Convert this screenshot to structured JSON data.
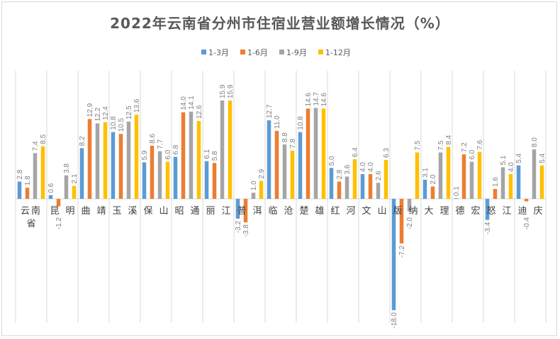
{
  "chart_data": {
    "type": "bar",
    "title": "2022年云南省分州市住宿业营业额增长情况（%）",
    "xlabel": "",
    "ylabel": "",
    "ylim": [
      -18,
      16
    ],
    "grid": "vertical category separators",
    "legend_position": "top",
    "categories": [
      "云南省",
      "昆明",
      "曲靖",
      "玉溪",
      "保山",
      "昭通",
      "丽江",
      "普洱",
      "临沧",
      "楚雄",
      "红河",
      "文山",
      "版纳",
      "大理",
      "德宏",
      "怒江",
      "迪庆"
    ],
    "series": [
      {
        "name": "1-3月",
        "color": "#5B9BD5",
        "values": [
          2.8,
          0.6,
          8.2,
          10.8,
          5.9,
          6.8,
          6.1,
          -3.2,
          12.7,
          10.8,
          5.0,
          4.0,
          -18.0,
          3.1,
          0.1,
          -3.4,
          5.4
        ]
      },
      {
        "name": "1-6月",
        "color": "#ED7D31",
        "values": [
          1.8,
          -1.2,
          12.9,
          10.5,
          8.6,
          14.0,
          5.8,
          -3.8,
          11.0,
          14.6,
          2.8,
          4.0,
          -7.2,
          2.0,
          7.2,
          1.6,
          -0.4
        ]
      },
      {
        "name": "1-9月",
        "color": "#A5A5A5",
        "values": [
          7.4,
          3.8,
          12.2,
          12.5,
          7.7,
          14.1,
          15.9,
          1.0,
          8.8,
          14.7,
          3.6,
          2.6,
          -2.0,
          7.5,
          6.0,
          5.1,
          8.0
        ]
      },
      {
        "name": "1-12月",
        "color": "#FFC000",
        "values": [
          8.5,
          2.1,
          12.4,
          13.6,
          6.0,
          12.6,
          15.9,
          2.9,
          7.8,
          14.6,
          6.4,
          6.3,
          7.5,
          8.4,
          7.6,
          4.0,
          5.4
        ]
      }
    ]
  }
}
